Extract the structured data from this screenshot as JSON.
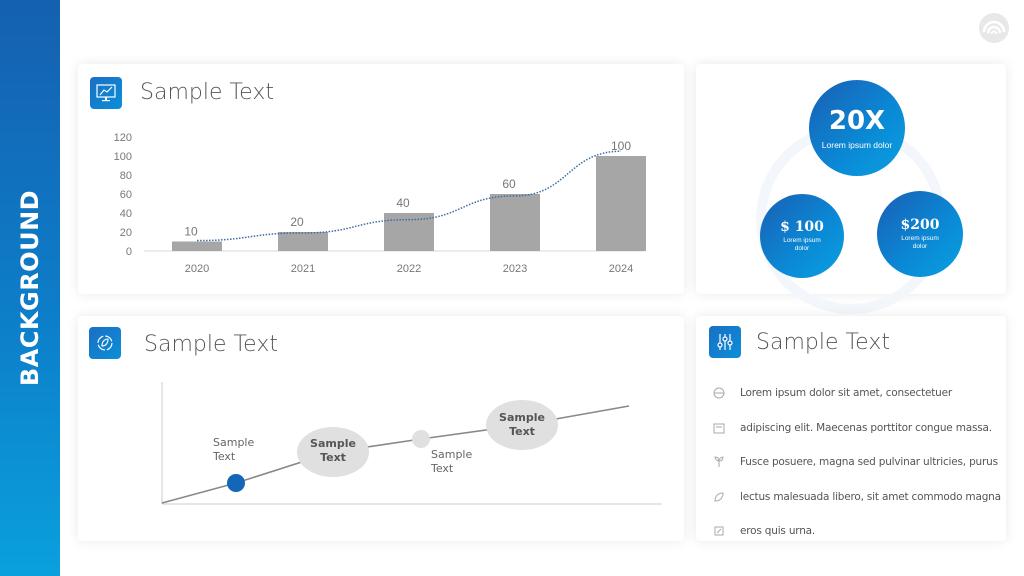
{
  "sidebar": {
    "label": "BACKGROUND"
  },
  "colors": {
    "accent": "#0d7ec9",
    "bar": "#a6a6a6",
    "trend": "#3a6ea5"
  },
  "cards": {
    "chart_card": {
      "title": "Sample Text",
      "icon": "monitor-chart-icon"
    },
    "stats_card": {
      "big": {
        "value": "20X",
        "label": "Lorem ipsum dolor"
      },
      "left": {
        "value": "$ 100",
        "label": "Lorem ipsum dolor"
      },
      "right": {
        "value": "$200",
        "label": "Lorem ipsum dolor"
      }
    },
    "timeline_card": {
      "title": "Sample Text",
      "icon": "leaf-cycle-icon",
      "labels": {
        "p1": [
          "Sample",
          "Text"
        ],
        "p2": [
          "Sample",
          "Text"
        ],
        "p3": [
          "Sample",
          "Text"
        ],
        "p4": [
          "Sample",
          "Text"
        ]
      }
    },
    "list_card": {
      "title": "Sample Text",
      "icon": "sliders-icon",
      "items": [
        {
          "icon": "globe-hand-icon",
          "text": "Lorem ipsum dolor sit amet, consectetuer"
        },
        {
          "icon": "calculator-icon",
          "text": "adipiscing elit. Maecenas porttitor congue massa."
        },
        {
          "icon": "plant-icon",
          "text": "Fusce posuere, magna sed pulvinar ultricies, purus"
        },
        {
          "icon": "leaf-icon",
          "text": "lectus malesuada libero, sit amet commodo magna"
        },
        {
          "icon": "hand-leaf-icon",
          "text": "eros quis urna."
        }
      ]
    }
  },
  "chart_data": {
    "type": "bar",
    "title": "Sample Text",
    "categories": [
      "2020",
      "2021",
      "2022",
      "2023",
      "2024"
    ],
    "values": [
      10,
      20,
      40,
      60,
      100
    ],
    "data_labels": [
      "10",
      "20",
      "40",
      "60",
      "100"
    ],
    "y_ticks": [
      "0",
      "20",
      "40",
      "60",
      "80",
      "100",
      "120"
    ],
    "xlabel": "",
    "ylabel": "",
    "ylim": [
      0,
      120
    ],
    "grid": false,
    "legend": "none",
    "trendline": "exponential (dotted)"
  }
}
